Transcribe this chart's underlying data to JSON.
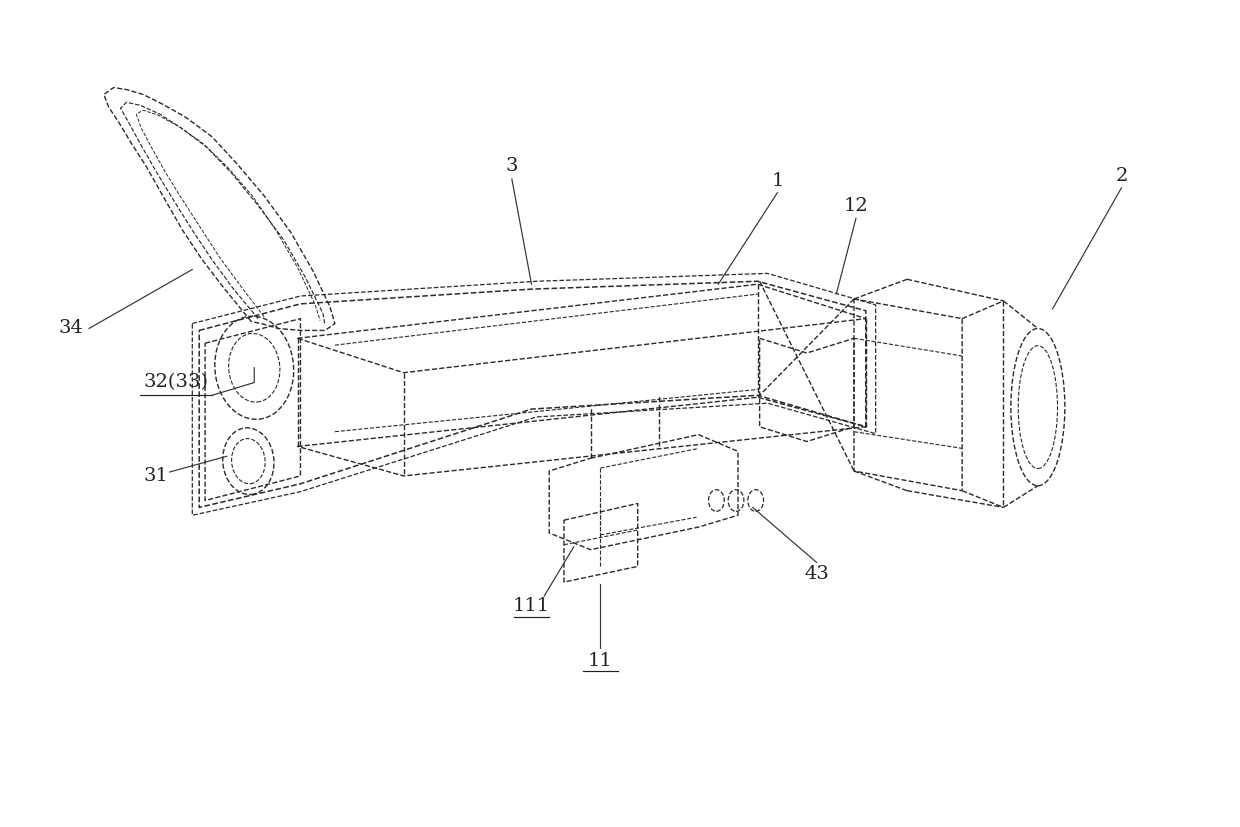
{
  "bg_color": "#ffffff",
  "line_color": "#2a2a2a",
  "lw": 1.0,
  "fig_width": 12.4,
  "fig_height": 8.27,
  "dpi": 100
}
